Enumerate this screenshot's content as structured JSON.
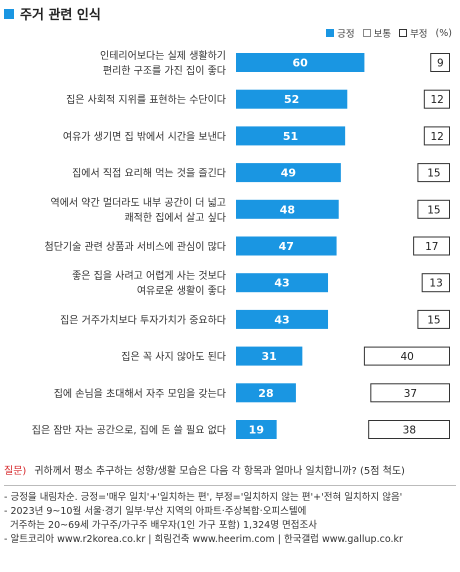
{
  "title": "주거 관련 인식",
  "legend": {
    "positive": "긍정",
    "neutral": "보통",
    "negative": "부정",
    "unit": "(%)"
  },
  "colors": {
    "positive": "#1a96e2",
    "neutral": "#ffffff",
    "negative": "#ffffff",
    "accent": "#1a96e2",
    "question": "#d6272a"
  },
  "chart_data": {
    "type": "bar",
    "stacked": true,
    "orientation": "horizontal",
    "categories": [
      [
        "인테리어보다는 실제 생활하기",
        "편리한 구조를 가진 집이 좋다"
      ],
      [
        "집은 사회적 지위를 표현하는 수단이다"
      ],
      [
        "여유가 생기면 집 밖에서 시간을 보낸다"
      ],
      [
        "집에서 직접 요리해 먹는 것을 즐긴다"
      ],
      [
        "역에서 약간 멀더라도 내부 공간이 더 넓고",
        "쾌적한 집에서 살고 싶다"
      ],
      [
        "첨단기술 관련 상품과 서비스에 관심이 많다"
      ],
      [
        "좋은 집을 사려고 어렵게 사는 것보다",
        "여유로운 생활이 좋다"
      ],
      [
        "집은 거주가치보다 투자가치가 중요하다"
      ],
      [
        "집은 꼭 사지 않아도 된다"
      ],
      [
        "집에 손님을 초대해서 자주 모임을 갖는다"
      ],
      [
        "집은 잠만 자는 공간으로, 집에 돈 쓸 필요 없다"
      ]
    ],
    "series": [
      {
        "name": "긍정",
        "values": [
          60,
          52,
          51,
          49,
          48,
          47,
          43,
          43,
          31,
          28,
          19
        ]
      },
      {
        "name": "부정",
        "values": [
          9,
          12,
          12,
          15,
          15,
          17,
          13,
          15,
          40,
          37,
          38
        ]
      }
    ],
    "xlim": [
      0,
      100
    ]
  },
  "footer": {
    "question_label": "질문)",
    "question_text": "귀하께서 평소 추구하는 성향/생활 모습은 다음 각 항목과 얼마나 일치합니까? (5점 척도)",
    "notes": [
      "- 긍정을 내림차순. 긍정='매우 일치'+'일치하는 편', 부정='일치하지 않는 편'+'전혀 일치하지 않음'",
      "- 2023년 9~10월 서울·경기 일부·부산 지역의 아파트·주상복합·오피스텔에",
      "  거주하는 20~69세 가구주/가구주 배우자(1인 가구 포함) 1,324명 면접조사",
      "- 알트코리아 www.r2korea.co.kr | 희림건축 www.heerim.com | 한국갤럽 www.gallup.co.kr"
    ]
  }
}
